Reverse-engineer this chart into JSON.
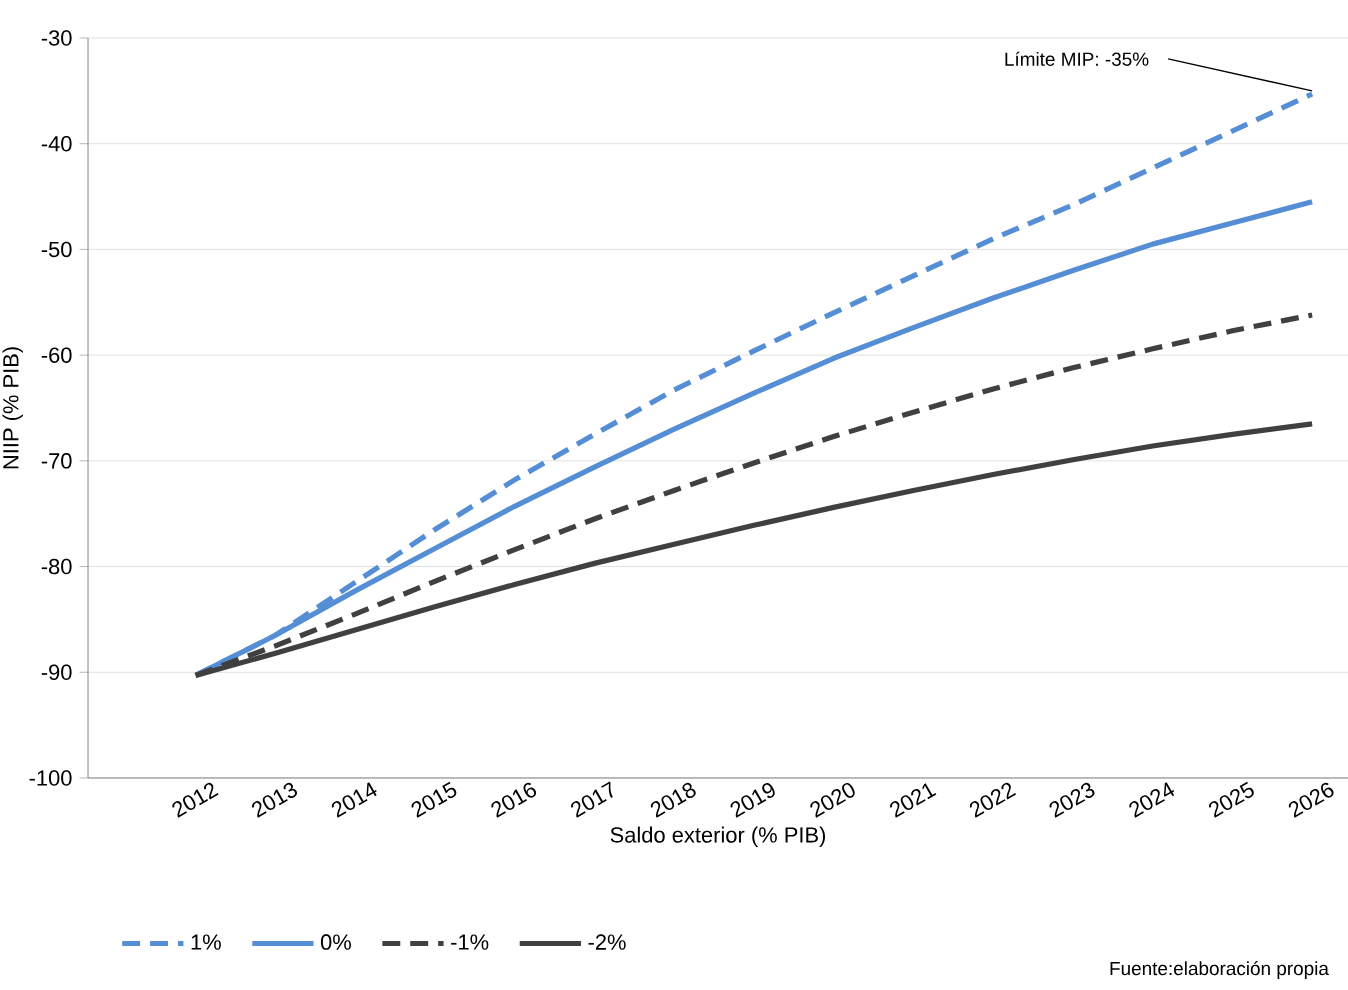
{
  "chart_data": {
    "type": "line",
    "xlabel": "Saldo exterior (% PIB)",
    "ylabel": "NIIP (% PIB)",
    "categories": [
      "2012",
      "2013",
      "2014",
      "2015",
      "2016",
      "2017",
      "2018",
      "2019",
      "2020",
      "2021",
      "2022",
      "2023",
      "2024",
      "2025",
      "2026"
    ],
    "series": [
      {
        "name": "1%",
        "color": "#558ed5",
        "line_style": "dashed",
        "values": [
          -90.3,
          -86.5,
          -81.5,
          -76.5,
          -71.8,
          -67.5,
          -63.3,
          -59.6,
          -56,
          -52.5,
          -49,
          -45.8,
          -42.3,
          -38.8,
          -35.3
        ]
      },
      {
        "name": "0%",
        "color": "#558ed5",
        "line_style": "solid",
        "values": [
          -90.3,
          -86.5,
          -82.3,
          -78.3,
          -74.3,
          -70.6,
          -67,
          -63.6,
          -60.3,
          -57.4,
          -54.6,
          -52,
          -49.5,
          -47.5,
          -45.5
        ]
      },
      {
        "name": "-1%",
        "color": "#404040",
        "line_style": "dashed",
        "values": [
          -90.3,
          -87.5,
          -84.5,
          -81.4,
          -78.4,
          -75.5,
          -72.8,
          -70.2,
          -67.7,
          -65.4,
          -63.2,
          -61.2,
          -59.4,
          -57.7,
          -56.2
        ]
      },
      {
        "name": "-2%",
        "color": "#404040",
        "line_style": "solid",
        "values": [
          -90.3,
          -88.2,
          -86,
          -83.8,
          -81.7,
          -79.7,
          -77.9,
          -76.1,
          -74.4,
          -72.8,
          -71.3,
          -69.9,
          -68.6,
          -67.5,
          -66.5
        ]
      }
    ],
    "ylim": [
      -100,
      -30
    ],
    "yticks": [
      -100,
      -90,
      -80,
      -70,
      -60,
      -50,
      -40,
      -30
    ],
    "grid": "y",
    "legend": "bottom",
    "marker": "none",
    "annotations": [
      {
        "text": "Límite MIP: -35%",
        "x": "2026",
        "y": -35
      },
      "Fuente:elaboración propia"
    ]
  }
}
